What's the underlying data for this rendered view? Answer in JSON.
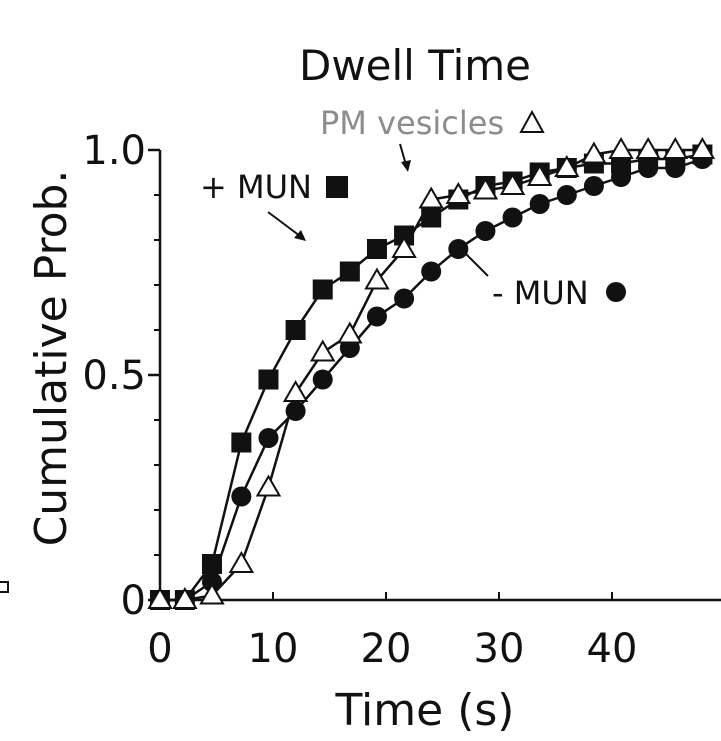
{
  "chart_data": {
    "type": "line",
    "title": "Dwell Time",
    "xlabel": "Time (s)",
    "ylabel": "Cumulative Prob.",
    "xlim": [
      0,
      48
    ],
    "ylim": [
      0,
      1.0
    ],
    "xticks": [
      0,
      10,
      20,
      30,
      40
    ],
    "xtick_labels": [
      "0",
      "10",
      "20",
      "30",
      "40"
    ],
    "yticks": [
      0,
      0.5,
      1.0
    ],
    "ytick_labels": [
      "0",
      "0.5",
      "1.0"
    ],
    "grid": false,
    "series": [
      {
        "name": "+ MUN",
        "marker": "square-filled",
        "x": [
          0,
          2.2,
          4.6,
          7.2,
          9.6,
          12.0,
          14.4,
          16.8,
          19.2,
          21.6,
          24.0,
          26.4,
          28.8,
          31.2,
          33.6,
          36.0,
          38.4,
          40.8,
          43.2,
          45.6,
          48.0
        ],
        "y": [
          0,
          0,
          0.08,
          0.35,
          0.49,
          0.6,
          0.69,
          0.73,
          0.78,
          0.81,
          0.85,
          0.89,
          0.92,
          0.93,
          0.95,
          0.96,
          0.97,
          0.97,
          0.98,
          0.98,
          0.99
        ]
      },
      {
        "name": "- MUN",
        "marker": "circle-filled",
        "x": [
          0,
          2.2,
          4.6,
          7.2,
          9.6,
          12.0,
          14.4,
          16.8,
          19.2,
          21.6,
          24.0,
          26.4,
          28.8,
          31.2,
          33.6,
          36.0,
          38.4,
          40.8,
          43.2,
          45.6,
          48.0
        ],
        "y": [
          0,
          0,
          0.04,
          0.23,
          0.36,
          0.42,
          0.49,
          0.56,
          0.63,
          0.67,
          0.73,
          0.78,
          0.82,
          0.85,
          0.88,
          0.9,
          0.92,
          0.94,
          0.96,
          0.96,
          0.98
        ]
      },
      {
        "name": "PM vesicles",
        "marker": "triangle-open",
        "x": [
          0,
          2.2,
          4.6,
          7.2,
          9.6,
          12.0,
          14.4,
          16.8,
          19.2,
          21.6,
          24.0,
          26.4,
          28.8,
          31.2,
          33.6,
          36.0,
          38.4,
          40.8,
          43.2,
          45.6,
          48.0
        ],
        "y": [
          0,
          0,
          0.01,
          0.08,
          0.25,
          0.46,
          0.55,
          0.59,
          0.71,
          0.78,
          0.89,
          0.9,
          0.91,
          0.92,
          0.94,
          0.96,
          0.99,
          1.0,
          1.0,
          1.0,
          1.0
        ]
      }
    ],
    "annotations": {
      "plus_mun": "+ MUN",
      "minus_mun": "- MUN",
      "pm_vesicles": "PM vesicles"
    }
  }
}
